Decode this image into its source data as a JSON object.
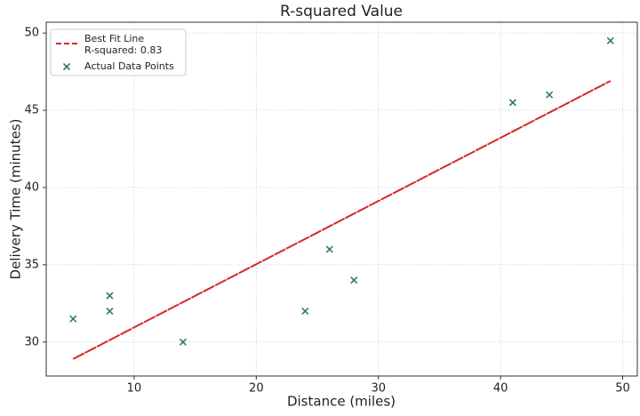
{
  "chart_data": {
    "type": "scatter",
    "title": "R-squared Value",
    "x_label": "Distance (miles)",
    "y_label": "Delivery Time (minutes)",
    "series": [
      {
        "name": "Best Fit Line",
        "type": "line",
        "color": "#d62728",
        "dashed": true,
        "x": [
          5,
          49
        ],
        "values": [
          28.9,
          46.9
        ]
      },
      {
        "name": "Actual Data Points",
        "type": "scatter",
        "color": "#2e7d62",
        "marker": "x",
        "x": [
          5,
          8,
          8,
          14,
          24,
          26,
          28,
          41,
          44,
          49
        ],
        "values": [
          31.5,
          33,
          32,
          30,
          32,
          36,
          34,
          45.5,
          46,
          49.5
        ]
      }
    ],
    "legend_note": "R-squared: 0.83",
    "legend": "upper left",
    "xlim": [
      2.8,
      51.2
    ],
    "xticks": [
      10,
      20,
      30,
      40,
      50
    ],
    "ylim": [
      27.8,
      50.7
    ],
    "yticks": [
      30,
      35,
      40,
      45,
      50
    ],
    "grid": true
  }
}
